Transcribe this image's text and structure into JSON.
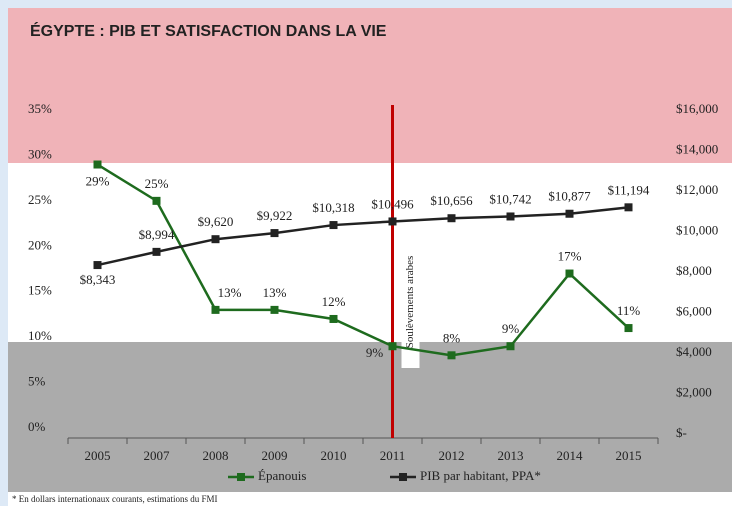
{
  "chart_data": {
    "type": "line",
    "title": "ÉGYPTE : PIB ET SATISFACTION DANS LA VIE",
    "categories": [
      "2005",
      "2007",
      "2008",
      "2009",
      "2010",
      "2011",
      "2012",
      "2013",
      "2014",
      "2015"
    ],
    "series": [
      {
        "name": "Épanouis",
        "color": "#1e6b1e",
        "values": [
          29,
          25,
          13,
          13,
          12,
          9,
          8,
          9,
          17,
          11
        ],
        "value_labels": [
          "29%",
          "25%",
          "13%",
          "13%",
          "12%",
          "9%",
          "8%",
          "9%",
          "17%",
          "11%"
        ]
      },
      {
        "name": "PIB par habitant, PPA*",
        "color": "#222222",
        "axis": "y2",
        "values": [
          8343,
          8994,
          9620,
          9922,
          10318,
          10496,
          10656,
          10742,
          10877,
          11194
        ],
        "value_labels": [
          "$8,343",
          "$8,994",
          "$9,620",
          "$9,922",
          "$10,318",
          "$10,496",
          "$10,656",
          "$10,742",
          "$10,877",
          "$11,194"
        ]
      }
    ],
    "ylim": [
      0,
      35
    ],
    "yticks": [
      {
        "value": 0,
        "label": "0%"
      },
      {
        "value": 5,
        "label": "5%"
      },
      {
        "value": 10,
        "label": "10%"
      },
      {
        "value": 15,
        "label": "15%"
      },
      {
        "value": 20,
        "label": "20%"
      },
      {
        "value": 25,
        "label": "25%"
      },
      {
        "value": 30,
        "label": "30%"
      },
      {
        "value": 35,
        "label": "35%"
      }
    ],
    "y2lim": [
      0,
      16000
    ],
    "y2ticks": [
      {
        "value": 0,
        "label": "$-"
      },
      {
        "value": 2000,
        "label": "$2,000"
      },
      {
        "value": 4000,
        "label": "$4,000"
      },
      {
        "value": 6000,
        "label": "$6,000"
      },
      {
        "value": 8000,
        "label": "$8,000"
      },
      {
        "value": 10000,
        "label": "$10,000"
      },
      {
        "value": 12000,
        "label": "$12,000"
      },
      {
        "value": 14000,
        "label": "$14,000"
      },
      {
        "value": 16000,
        "label": "$16,000"
      }
    ],
    "annotations": [
      {
        "category": "2011",
        "text": "Soulèvements arabes",
        "color": "#c00000"
      }
    ],
    "footnote": "* En dollars internationaux courants, estimations du FMI"
  }
}
